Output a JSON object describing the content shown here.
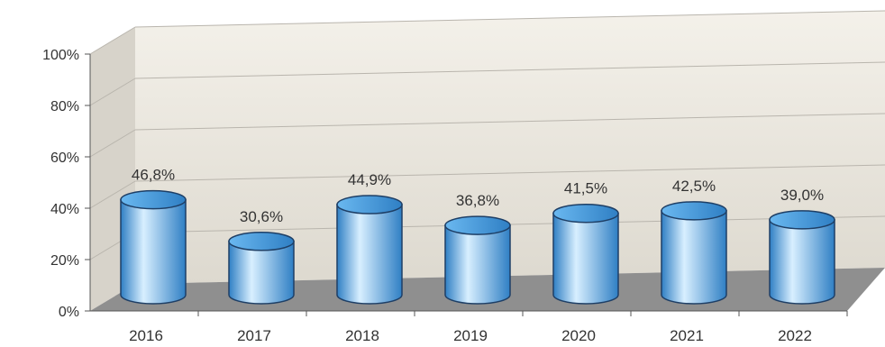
{
  "chart_data": {
    "type": "bar",
    "style": "3d-cylinder",
    "categories": [
      "2016",
      "2017",
      "2018",
      "2019",
      "2020",
      "2021",
      "2022"
    ],
    "values": [
      46.8,
      30.6,
      44.9,
      36.8,
      41.5,
      42.5,
      39.0
    ],
    "data_labels": [
      "46,8%",
      "30,6%",
      "44,9%",
      "36,8%",
      "41,5%",
      "42,5%",
      "39,0%"
    ],
    "y_ticks": [
      "0%",
      "20%",
      "40%",
      "60%",
      "80%",
      "100%"
    ],
    "ylim": [
      0,
      100
    ],
    "grid": true,
    "legend": "none",
    "colors": {
      "bar_light": "#d8efff",
      "bar_mid": "#6ab8f0",
      "bar_dark": "#2f7fc4",
      "bar_outline": "#1e3f66",
      "back_wall": "#ebe7de",
      "side_wall": "#d7d3ca",
      "floor": "#8f8f8f",
      "grid": "#b9b5ad"
    }
  }
}
